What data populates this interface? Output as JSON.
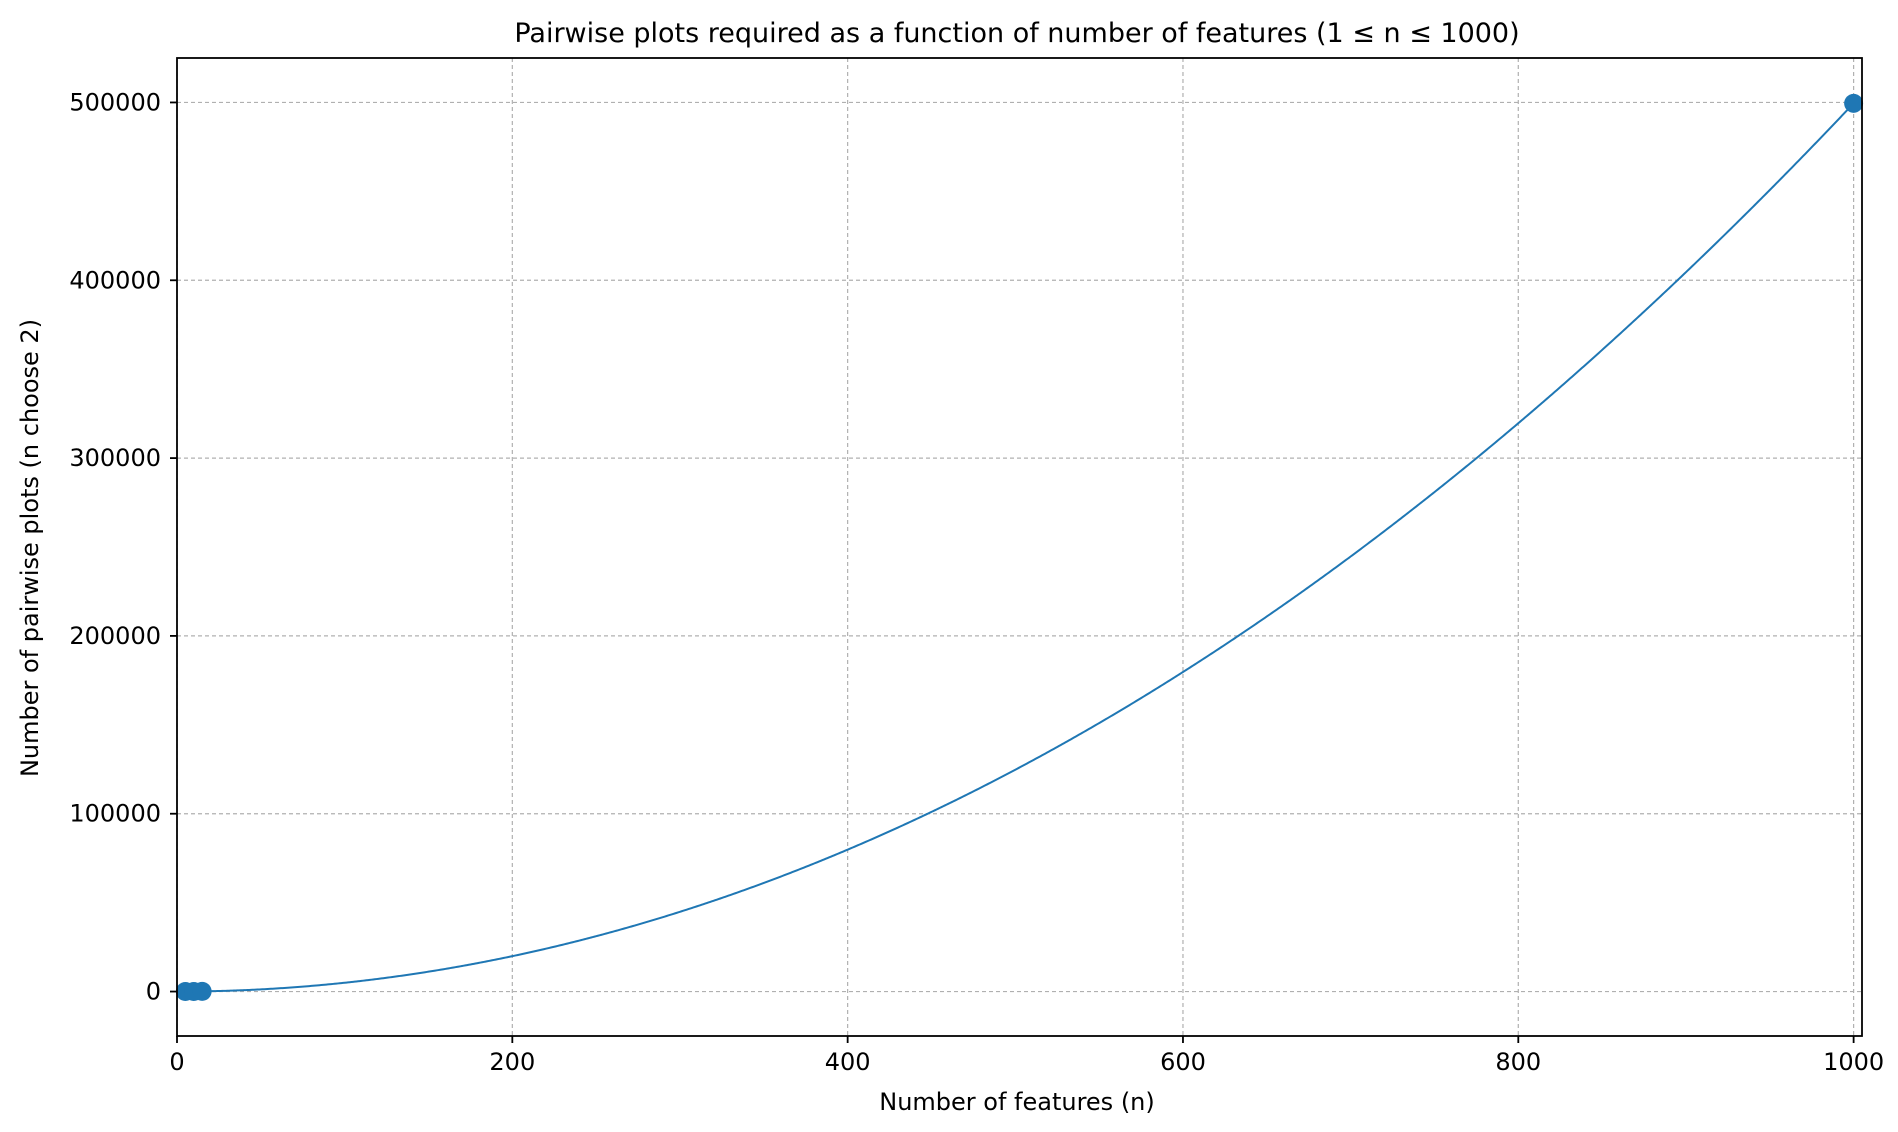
{
  "chart_data": {
    "type": "line",
    "title": "Pairwise plots required as a function of number of features (1 ≤ n ≤ 1000)",
    "xlabel": "Number of features (n)",
    "ylabel": "Number of pairwise plots (n choose 2)",
    "xlim": [
      0,
      1005
    ],
    "ylim": [
      -25000,
      525000
    ],
    "x_ticks": [
      0,
      200,
      400,
      600,
      800,
      1000
    ],
    "x_tick_labels": [
      "0",
      "200",
      "400",
      "600",
      "800",
      "1000"
    ],
    "y_ticks": [
      0,
      100000,
      200000,
      300000,
      400000,
      500000
    ],
    "y_tick_labels": [
      "0",
      "100000",
      "200000",
      "300000",
      "400000",
      "500000"
    ],
    "grid": true,
    "color": "#1f77b4",
    "series": [
      {
        "kind": "line",
        "function": "n choose 2",
        "x_range": [
          1,
          1000
        ],
        "x": [
          1,
          50,
          100,
          150,
          200,
          250,
          300,
          350,
          400,
          450,
          500,
          550,
          600,
          650,
          700,
          750,
          800,
          850,
          900,
          950,
          1000
        ],
        "y": [
          0,
          1225,
          4950,
          11175,
          19900,
          31125,
          44850,
          61075,
          79800,
          101025,
          124750,
          150975,
          179700,
          210925,
          244650,
          280875,
          319600,
          360825,
          404550,
          450775,
          499500
        ]
      },
      {
        "kind": "scatter",
        "x": [
          5,
          10,
          15,
          1000
        ],
        "y": [
          10,
          45,
          105,
          499500
        ]
      }
    ]
  }
}
